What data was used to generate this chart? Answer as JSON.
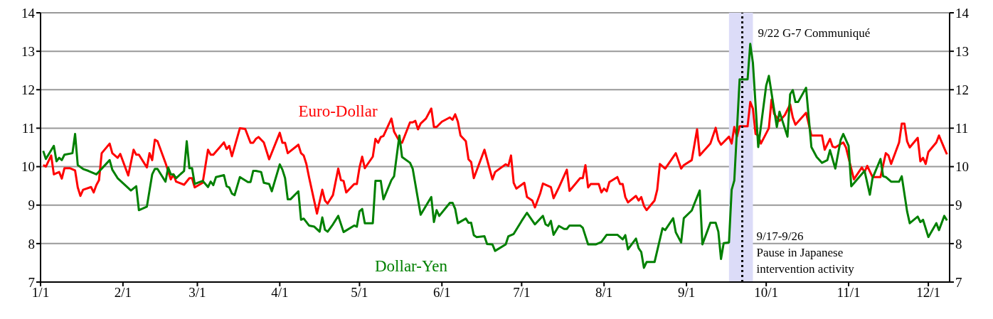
{
  "chart_data": {
    "type": "line",
    "xlim": [
      "--01-01",
      "--12-09"
    ],
    "xticks": [
      {
        "value": "--01-01",
        "label": "1/1"
      },
      {
        "value": "--02-01",
        "label": "2/1"
      },
      {
        "value": "--03-01",
        "label": "3/1"
      },
      {
        "value": "--04-01",
        "label": "4/1"
      },
      {
        "value": "--05-01",
        "label": "5/1"
      },
      {
        "value": "--06-01",
        "label": "6/1"
      },
      {
        "value": "--07-01",
        "label": "7/1"
      },
      {
        "value": "--08-01",
        "label": "8/1"
      },
      {
        "value": "--09-01",
        "label": "9/1"
      },
      {
        "value": "--10-01",
        "label": "10/1"
      },
      {
        "value": "--11-01",
        "label": "11/1"
      },
      {
        "value": "--12-01",
        "label": "12/1"
      }
    ],
    "ylim": [
      7,
      14
    ],
    "yticks": [
      7,
      8,
      9,
      10,
      11,
      12,
      13,
      14
    ],
    "y2lim": [
      7,
      14
    ],
    "y2ticks": [
      7,
      8,
      9,
      10,
      11,
      12,
      13,
      14
    ],
    "grid": "y",
    "marker": "none",
    "ref_lines": [
      {
        "axis": "x",
        "value": "--09-22",
        "label": "9/22 G-7 Communiqué",
        "color": "#000000",
        "line_style": "dotted"
      }
    ],
    "bands": [
      {
        "axis": "x",
        "from": "--09-17",
        "to": "--09-26",
        "label": "9/17-9/26\nPause in Japanese\nintervention activity",
        "color": "#dcdcf8"
      }
    ],
    "series": [
      {
        "name": "Euro-Dollar",
        "color": "#ff0000",
        "x": [
          "--01-02",
          "--01-03",
          "--01-05",
          "--01-06",
          "--01-08",
          "--01-09",
          "--01-10",
          "--01-12",
          "--01-14",
          "--01-15",
          "--01-16",
          "--01-17",
          "--01-20",
          "--01-21",
          "--01-22",
          "--01-23",
          "--01-24",
          "--01-27",
          "--01-28",
          "--01-30",
          "--01-31",
          "--02-03",
          "--02-05",
          "--02-06",
          "--02-07",
          "--02-10",
          "--02-11",
          "--02-12",
          "--02-13",
          "--02-14",
          "--02-17",
          "--02-19",
          "--02-20",
          "--02-21",
          "--02-24",
          "--02-26",
          "--02-27",
          "--02-28",
          "--03-03",
          "--03-05",
          "--03-06",
          "--03-07",
          "--03-11",
          "--03-12",
          "--03-13",
          "--03-14",
          "--03-17",
          "--03-19",
          "--03-21",
          "--03-22",
          "--03-23",
          "--03-24",
          "--03-26",
          "--03-28",
          "--04-01",
          "--04-02",
          "--04-03",
          "--04-04",
          "--04-08",
          "--04-09",
          "--04-10",
          "--04-11",
          "--04-12",
          "--04-15",
          "--04-17",
          "--04-18",
          "--04-19",
          "--04-21",
          "--04-23",
          "--04-24",
          "--04-25",
          "--04-26",
          "--04-29",
          "--04-30",
          "--05-01",
          "--05-02",
          "--05-03",
          "--05-06",
          "--05-07",
          "--05-08",
          "--05-09",
          "--05-10",
          "--05-13",
          "--05-14",
          "--05-16",
          "--05-17",
          "--05-20",
          "--05-21",
          "--05-22",
          "--05-23",
          "--05-24",
          "--05-26",
          "--05-28",
          "--05-29",
          "--05-30",
          "--06-01",
          "--06-04",
          "--06-05",
          "--06-06",
          "--06-07",
          "--06-08",
          "--06-10",
          "--06-11",
          "--06-12",
          "--06-13",
          "--06-17",
          "--06-20",
          "--06-21",
          "--06-25",
          "--06-26",
          "--06-27",
          "--06-28",
          "--06-29",
          "--07-02",
          "--07-03",
          "--07-05",
          "--07-06",
          "--07-08",
          "--07-09",
          "--07-12",
          "--07-13",
          "--07-15",
          "--07-18",
          "--07-19",
          "--07-23",
          "--07-24",
          "--07-25",
          "--07-26",
          "--07-27",
          "--07-30",
          "--07-31",
          "--08-01",
          "--08-02",
          "--08-03",
          "--08-06",
          "--08-07",
          "--08-08",
          "--08-09",
          "--08-10",
          "--08-13",
          "--08-14",
          "--08-15",
          "--08-16",
          "--08-17",
          "--08-20",
          "--08-21",
          "--08-22",
          "--08-24",
          "--08-28",
          "--08-30",
          "--08-31",
          "--09-03",
          "--09-05",
          "--09-06",
          "--09-10",
          "--09-12",
          "--09-13",
          "--09-14",
          "--09-17",
          "--09-18",
          "--09-19",
          "--09-20",
          "--09-21",
          "--09-24",
          "--09-25",
          "--09-26",
          "--09-27",
          "--09-28",
          "--09-29",
          "--10-02",
          "--10-03",
          "--10-04",
          "--10-06",
          "--10-08",
          "--10-10",
          "--10-11",
          "--10-12",
          "--10-16",
          "--10-18",
          "--10-22",
          "--10-23",
          "--10-25",
          "--10-26",
          "--10-27",
          "--10-30",
          "--10-31",
          "--11-03",
          "--11-06",
          "--11-07",
          "--11-08",
          "--11-10",
          "--11-13",
          "--11-15",
          "--11-16",
          "--11-17",
          "--11-20",
          "--11-21",
          "--11-22",
          "--11-23",
          "--11-24",
          "--11-27",
          "--11-28",
          "--11-29",
          "--11-30",
          "--12-01",
          "--12-04",
          "--12-05",
          "--12-07",
          "--12-08"
        ],
        "values": [
          10.04,
          10.0,
          10.29,
          9.8,
          9.86,
          9.69,
          9.96,
          9.96,
          9.9,
          9.46,
          9.24,
          9.4,
          9.47,
          9.33,
          9.52,
          9.65,
          10.35,
          10.6,
          10.35,
          10.23,
          10.33,
          9.77,
          10.44,
          10.31,
          10.31,
          9.98,
          10.35,
          10.17,
          10.7,
          10.66,
          10.1,
          9.67,
          9.8,
          9.61,
          9.53,
          9.7,
          9.7,
          9.46,
          9.58,
          10.44,
          10.31,
          10.31,
          10.63,
          10.46,
          10.54,
          10.27,
          11.0,
          10.98,
          10.62,
          10.62,
          10.72,
          10.77,
          10.63,
          10.19,
          10.88,
          10.62,
          10.62,
          10.35,
          10.57,
          10.35,
          10.29,
          10.07,
          9.73,
          8.78,
          9.4,
          9.12,
          9.04,
          9.26,
          9.95,
          9.65,
          9.63,
          9.33,
          9.55,
          9.55,
          9.98,
          10.26,
          9.96,
          10.26,
          10.72,
          10.62,
          10.77,
          10.8,
          11.25,
          10.91,
          10.66,
          10.62,
          11.15,
          11.15,
          11.19,
          10.97,
          11.12,
          11.25,
          11.51,
          11.03,
          11.03,
          11.17,
          11.28,
          11.22,
          11.36,
          11.17,
          10.81,
          10.66,
          10.19,
          10.12,
          9.7,
          10.44,
          9.67,
          9.86,
          10.06,
          10.02,
          10.29,
          9.58,
          9.43,
          9.58,
          9.21,
          9.12,
          8.94,
          9.31,
          9.56,
          9.47,
          9.18,
          9.46,
          9.92,
          9.37,
          9.7,
          9.7,
          10.04,
          9.46,
          9.55,
          9.55,
          9.33,
          9.43,
          9.36,
          9.6,
          9.73,
          9.55,
          9.55,
          9.21,
          9.07,
          9.24,
          9.12,
          9.21,
          8.98,
          8.87,
          9.12,
          9.4,
          10.07,
          9.95,
          10.35,
          9.95,
          10.04,
          10.17,
          10.97,
          10.29,
          10.6,
          11.01,
          10.69,
          10.57,
          10.78,
          10.6,
          11.03,
          10.78,
          11.05,
          11.05,
          11.68,
          11.51,
          10.85,
          10.81,
          10.6,
          11.0,
          11.74,
          11.37,
          11.19,
          11.34,
          11.62,
          11.28,
          11.09,
          11.4,
          10.81,
          10.81,
          10.44,
          10.72,
          10.52,
          10.5,
          10.63,
          10.5,
          9.67,
          9.98,
          9.86,
          10.02,
          9.73,
          9.73,
          10.35,
          10.29,
          10.07,
          10.63,
          11.12,
          11.12,
          10.66,
          10.5,
          10.75,
          10.14,
          10.23,
          10.07,
          10.38,
          10.63,
          10.81,
          10.48,
          10.32
        ]
      },
      {
        "name": "Dollar-Yen",
        "color": "#008000",
        "x": [
          "--01-02",
          "--01-03",
          "--01-06",
          "--01-07",
          "--01-08",
          "--01-09",
          "--01-10",
          "--01-13",
          "--01-14",
          "--01-15",
          "--01-17",
          "--01-19",
          "--01-22",
          "--01-27",
          "--01-28",
          "--01-30",
          "--02-04",
          "--02-06",
          "--02-07",
          "--02-10",
          "--02-12",
          "--02-13",
          "--02-14",
          "--02-17",
          "--02-18",
          "--02-19",
          "--02-20",
          "--02-21",
          "--02-24",
          "--02-25",
          "--02-26",
          "--02-27",
          "--02-28",
          "--03-03",
          "--03-05",
          "--03-06",
          "--03-07",
          "--03-08",
          "--03-11",
          "--03-12",
          "--03-13",
          "--03-14",
          "--03-15",
          "--03-17",
          "--03-20",
          "--03-21",
          "--03-22",
          "--03-23",
          "--03-25",
          "--03-26",
          "--03-28",
          "--03-29",
          "--04-01",
          "--04-02",
          "--04-03",
          "--04-04",
          "--04-05",
          "--04-08",
          "--04-09",
          "--04-10",
          "--04-12",
          "--04-14",
          "--04-16",
          "--04-17",
          "--04-18",
          "--04-19",
          "--04-21",
          "--04-23",
          "--04-25",
          "--04-29",
          "--04-30",
          "--05-01",
          "--05-02",
          "--05-03",
          "--05-06",
          "--05-07",
          "--05-09",
          "--05-10",
          "--05-13",
          "--05-14",
          "--05-16",
          "--05-17",
          "--05-20",
          "--05-21",
          "--05-24",
          "--05-28",
          "--05-29",
          "--05-30",
          "--05-31",
          "--06-04",
          "--06-05",
          "--06-06",
          "--06-07",
          "--06-10",
          "--06-11",
          "--06-12",
          "--06-13",
          "--06-14",
          "--06-17",
          "--06-18",
          "--06-20",
          "--06-21",
          "--06-25",
          "--06-26",
          "--06-28",
          "--07-01",
          "--07-03",
          "--07-06",
          "--07-09",
          "--07-10",
          "--07-11",
          "--07-12",
          "--07-13",
          "--07-15",
          "--07-17",
          "--07-18",
          "--07-19",
          "--07-23",
          "--07-24",
          "--07-26",
          "--07-29",
          "--07-31",
          "--08-02",
          "--08-06",
          "--08-08",
          "--08-09",
          "--08-10",
          "--08-13",
          "--08-14",
          "--08-15",
          "--08-16",
          "--08-17",
          "--08-20",
          "--08-23",
          "--08-24",
          "--08-27",
          "--08-28",
          "--08-30",
          "--08-31",
          "--09-03",
          "--09-04",
          "--09-06",
          "--09-07",
          "--09-10",
          "--09-12",
          "--09-13",
          "--09-14",
          "--09-15",
          "--09-17",
          "--09-18",
          "--09-19",
          "--09-21",
          "--09-24",
          "--09-25",
          "--09-26",
          "--09-28",
          "--10-01",
          "--10-02",
          "--10-05",
          "--10-06",
          "--10-09",
          "--10-10",
          "--10-11",
          "--10-12",
          "--10-13",
          "--10-16",
          "--10-18",
          "--10-20",
          "--10-22",
          "--10-24",
          "--10-25",
          "--10-27",
          "--10-29",
          "--10-30",
          "--11-01",
          "--11-02",
          "--11-07",
          "--11-09",
          "--11-10",
          "--11-13",
          "--11-14",
          "--11-15",
          "--11-17",
          "--11-20",
          "--11-21",
          "--11-23",
          "--11-24",
          "--11-27",
          "--11-28",
          "--11-29",
          "--12-01",
          "--12-04",
          "--12-05",
          "--12-07",
          "--12-08"
        ],
        "values": [
          10.41,
          10.2,
          10.54,
          10.14,
          10.23,
          10.17,
          10.31,
          10.35,
          10.85,
          10.04,
          9.94,
          9.89,
          9.8,
          10.17,
          9.92,
          9.7,
          9.38,
          9.49,
          8.87,
          8.96,
          9.8,
          9.94,
          9.94,
          9.61,
          9.98,
          9.8,
          9.8,
          9.7,
          9.89,
          10.66,
          9.96,
          9.96,
          9.55,
          9.63,
          9.47,
          9.61,
          9.52,
          9.73,
          9.78,
          9.49,
          9.46,
          9.3,
          9.26,
          9.73,
          9.6,
          9.6,
          9.89,
          9.89,
          9.86,
          9.58,
          9.55,
          9.36,
          10.06,
          9.92,
          9.7,
          9.15,
          9.15,
          9.36,
          8.62,
          8.65,
          8.47,
          8.44,
          8.31,
          8.68,
          8.36,
          8.31,
          8.5,
          8.72,
          8.3,
          8.47,
          8.44,
          8.84,
          8.9,
          8.53,
          8.53,
          9.63,
          9.63,
          9.15,
          9.65,
          9.75,
          10.81,
          10.25,
          10.1,
          9.95,
          8.75,
          9.21,
          8.56,
          8.87,
          8.72,
          9.06,
          9.06,
          8.9,
          8.53,
          8.65,
          8.54,
          8.54,
          8.22,
          8.17,
          8.19,
          7.99,
          7.98,
          7.81,
          7.98,
          8.19,
          8.25,
          8.59,
          8.8,
          8.5,
          8.72,
          8.5,
          8.46,
          8.59,
          8.23,
          8.46,
          8.38,
          8.38,
          8.47,
          8.47,
          8.41,
          7.98,
          7.98,
          8.04,
          8.23,
          8.23,
          8.11,
          8.22,
          7.85,
          8.13,
          7.88,
          7.78,
          7.37,
          7.52,
          7.52,
          8.4,
          8.35,
          8.66,
          8.29,
          8.03,
          8.66,
          8.86,
          9.04,
          9.38,
          7.98,
          8.54,
          8.54,
          8.31,
          7.6,
          8.01,
          8.03,
          9.4,
          9.64,
          12.27,
          12.27,
          13.19,
          12.7,
          10.51,
          12.11,
          12.36,
          11.03,
          11.43,
          10.78,
          11.88,
          11.99,
          11.68,
          11.68,
          12.05,
          10.51,
          10.25,
          10.1,
          10.17,
          10.43,
          9.95,
          10.69,
          10.85,
          10.54,
          9.49,
          9.89,
          9.27,
          9.7,
          10.2,
          9.75,
          9.73,
          9.61,
          9.61,
          9.75,
          8.84,
          8.53,
          8.7,
          8.56,
          8.62,
          8.17,
          8.53,
          8.35,
          8.72,
          8.6
        ]
      }
    ]
  }
}
